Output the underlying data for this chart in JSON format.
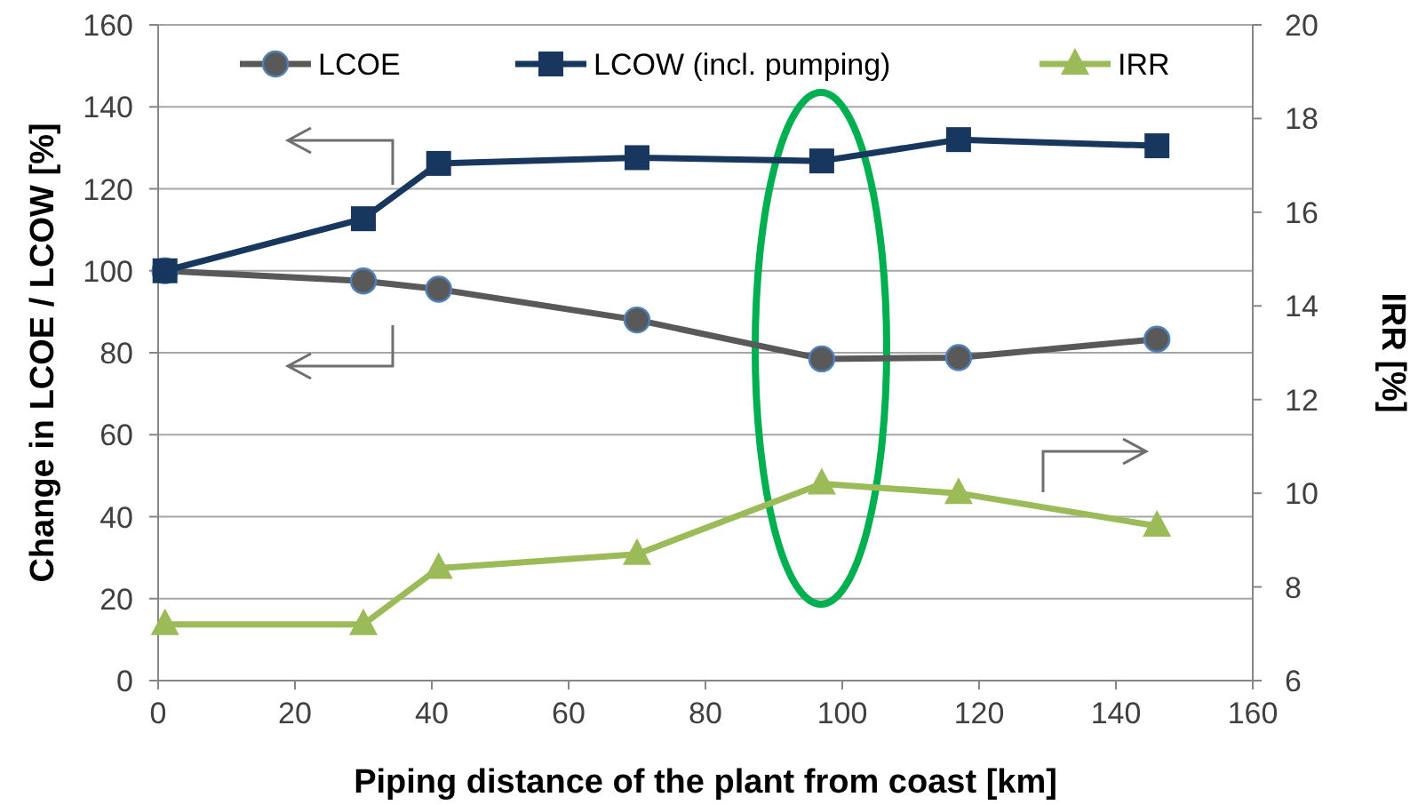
{
  "chart_data": {
    "type": "line",
    "xlabel": "Piping distance of the plant from coast [km]",
    "ylabel": "Change in LCOE / LCOW  [%]",
    "y2label": "IRR [%]",
    "x": [
      1,
      30,
      41,
      70,
      97,
      117,
      146
    ],
    "xlim": [
      0,
      160
    ],
    "xticks": [
      0,
      20,
      40,
      60,
      80,
      100,
      120,
      140,
      160
    ],
    "ylim": [
      0,
      160
    ],
    "yticks": [
      0,
      20,
      40,
      60,
      80,
      100,
      120,
      140,
      160
    ],
    "y2lim": [
      6,
      20
    ],
    "y2ticks": [
      6,
      8,
      10,
      12,
      14,
      16,
      18,
      20
    ],
    "grid": "y",
    "legend": "top",
    "series": [
      {
        "name": "LCOE",
        "color": "#595959",
        "marker": "circle",
        "values": [
          100,
          97.5,
          95.5,
          88,
          78.5,
          78.8,
          83.3
        ]
      },
      {
        "name": "LCOW (incl. pumping)",
        "color": "#17375e",
        "marker": "square",
        "values": [
          100,
          112.7,
          126.2,
          127.6,
          126.8,
          132,
          130.5
        ]
      },
      {
        "name": "IRR",
        "color": "#9bbb59",
        "marker": "triangle",
        "axis": "y2",
        "values": [
          7.2,
          7.2,
          8.4,
          8.7,
          10.2,
          10.0,
          9.3
        ]
      }
    ]
  }
}
